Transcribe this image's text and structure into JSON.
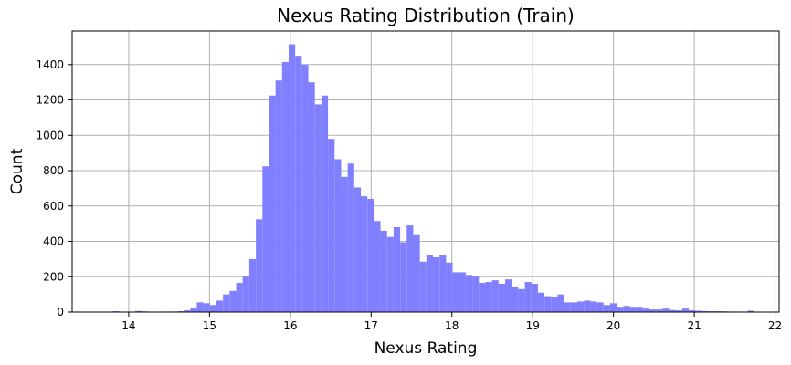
{
  "chart_data": {
    "type": "bar",
    "title": "Nexus Rating Distribution (Train)",
    "xlabel": "Nexus Rating",
    "ylabel": "Count",
    "xlim": [
      13.3,
      22.05
    ],
    "ylim": [
      0,
      1590
    ],
    "xticks": [
      14,
      15,
      16,
      17,
      18,
      19,
      20,
      21,
      22
    ],
    "yticks": [
      0,
      200,
      400,
      600,
      800,
      1000,
      1200,
      1400
    ],
    "grid": true,
    "bar_color": "#8080ff",
    "bin_width": 0.0812,
    "bin_start": 14.68,
    "values": [
      10,
      20,
      55,
      50,
      40,
      65,
      100,
      120,
      165,
      200,
      300,
      525,
      825,
      1225,
      1310,
      1415,
      1515,
      1450,
      1400,
      1300,
      1175,
      1225,
      980,
      865,
      765,
      840,
      705,
      655,
      640,
      515,
      460,
      425,
      480,
      395,
      490,
      440,
      285,
      325,
      310,
      320,
      280,
      225,
      225,
      210,
      200,
      165,
      170,
      180,
      160,
      185,
      145,
      130,
      170,
      160,
      110,
      90,
      85,
      100,
      55,
      55,
      60,
      65,
      60,
      55,
      40,
      50,
      30,
      35,
      30,
      30,
      20,
      15,
      15,
      20,
      12,
      10,
      20,
      10,
      8,
      6,
      5,
      5,
      4,
      3,
      3
    ],
    "sparse_bins": [
      {
        "x": 13.8,
        "value": 5
      },
      {
        "x": 14.08,
        "value": 6
      },
      {
        "x": 14.16,
        "value": 4
      },
      {
        "x": 14.45,
        "value": 3
      },
      {
        "x": 14.53,
        "value": 3
      },
      {
        "x": 14.61,
        "value": 5
      },
      {
        "x": 20.69,
        "value": 8
      },
      {
        "x": 21.66,
        "value": 8
      }
    ]
  }
}
